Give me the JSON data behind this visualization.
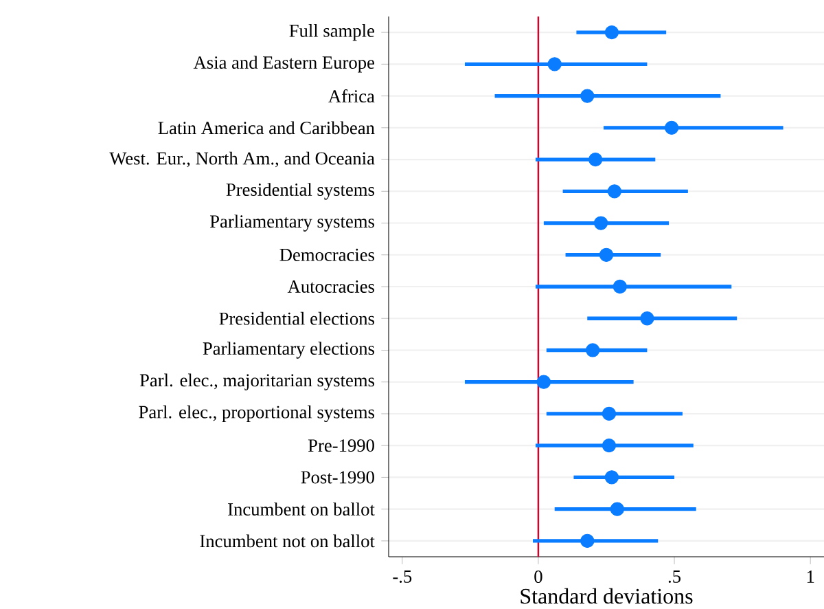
{
  "chart_data": {
    "type": "scatter",
    "orientation": "horizontal",
    "xlabel": "Standard deviations",
    "categories": [
      "Full sample",
      "Asia and Eastern Europe",
      "Africa",
      "Latin America and Caribbean",
      "West. Eur., North Am., and Oceania",
      "Presidential systems",
      "Parliamentary systems",
      "Democracies",
      "Autocracies",
      "Presidential elections",
      "Parliamentary elections",
      "Parl. elec., majoritarian systems",
      "Parl. elec., proportional systems",
      "Pre-1990",
      "Post-1990",
      "Incumbent on ballot",
      "Incumbent not on ballot"
    ],
    "values": [
      0.27,
      0.06,
      0.18,
      0.49,
      0.21,
      0.28,
      0.23,
      0.25,
      0.3,
      0.4,
      0.2,
      0.02,
      0.26,
      0.26,
      0.27,
      0.29,
      0.18
    ],
    "errors": [
      [
        0.14,
        0.47
      ],
      [
        -0.27,
        0.4
      ],
      [
        -0.16,
        0.67
      ],
      [
        0.24,
        0.9
      ],
      [
        -0.01,
        0.43
      ],
      [
        0.09,
        0.55
      ],
      [
        0.02,
        0.48
      ],
      [
        0.1,
        0.45
      ],
      [
        -0.01,
        0.71
      ],
      [
        0.18,
        0.73
      ],
      [
        0.03,
        0.4
      ],
      [
        -0.27,
        0.35
      ],
      [
        0.03,
        0.53
      ],
      [
        -0.01,
        0.57
      ],
      [
        0.13,
        0.5
      ],
      [
        0.06,
        0.58
      ],
      [
        -0.02,
        0.44
      ]
    ],
    "color": "#0a7cff",
    "marker": "circle",
    "grid": "y",
    "xlim": [
      -0.55,
      1.05
    ],
    "xticks": [
      {
        "value": -0.5,
        "label": "-.5"
      },
      0,
      {
        "value": 0.5,
        "label": ".5"
      },
      1
    ],
    "ref_lines": [
      {
        "axis": "x",
        "value": 0,
        "color": "#d6002b"
      }
    ]
  }
}
